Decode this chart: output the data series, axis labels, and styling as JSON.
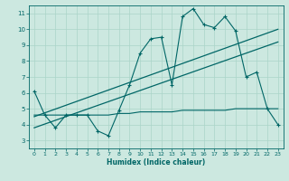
{
  "xlabel": "Humidex (Indice chaleur)",
  "bg_color": "#cce8e0",
  "line_color": "#006666",
  "grid_color": "#aad4c8",
  "xlim": [
    -0.5,
    23.5
  ],
  "ylim": [
    2.5,
    11.5
  ],
  "xticks": [
    0,
    1,
    2,
    3,
    4,
    5,
    6,
    7,
    8,
    9,
    10,
    11,
    12,
    13,
    14,
    15,
    16,
    17,
    18,
    19,
    20,
    21,
    22,
    23
  ],
  "yticks": [
    3,
    4,
    5,
    6,
    7,
    8,
    9,
    10,
    11
  ],
  "curve1_x": [
    0,
    1,
    2,
    3,
    4,
    5,
    6,
    7,
    8,
    9,
    10,
    11,
    12,
    13,
    14,
    15,
    16,
    17,
    18,
    19,
    20,
    21,
    22,
    23
  ],
  "curve1_y": [
    6.1,
    4.6,
    3.8,
    4.6,
    4.6,
    4.6,
    3.6,
    3.3,
    4.9,
    6.5,
    8.5,
    9.4,
    9.5,
    6.5,
    10.8,
    11.3,
    10.3,
    10.1,
    10.8,
    9.9,
    7.0,
    7.3,
    5.0,
    4.0
  ],
  "reg_line1_x": [
    0,
    23
  ],
  "reg_line1_y": [
    3.8,
    9.2
  ],
  "reg_line2_x": [
    0,
    23
  ],
  "reg_line2_y": [
    4.5,
    10.0
  ],
  "flat_line_x": [
    0,
    1,
    2,
    3,
    4,
    5,
    6,
    7,
    8,
    9,
    10,
    11,
    12,
    13,
    14,
    15,
    16,
    17,
    18,
    19,
    20,
    21,
    22,
    23
  ],
  "flat_line_y": [
    4.6,
    4.6,
    4.6,
    4.6,
    4.6,
    4.6,
    4.6,
    4.6,
    4.7,
    4.7,
    4.8,
    4.8,
    4.8,
    4.8,
    4.9,
    4.9,
    4.9,
    4.9,
    4.9,
    5.0,
    5.0,
    5.0,
    5.0,
    5.0
  ]
}
